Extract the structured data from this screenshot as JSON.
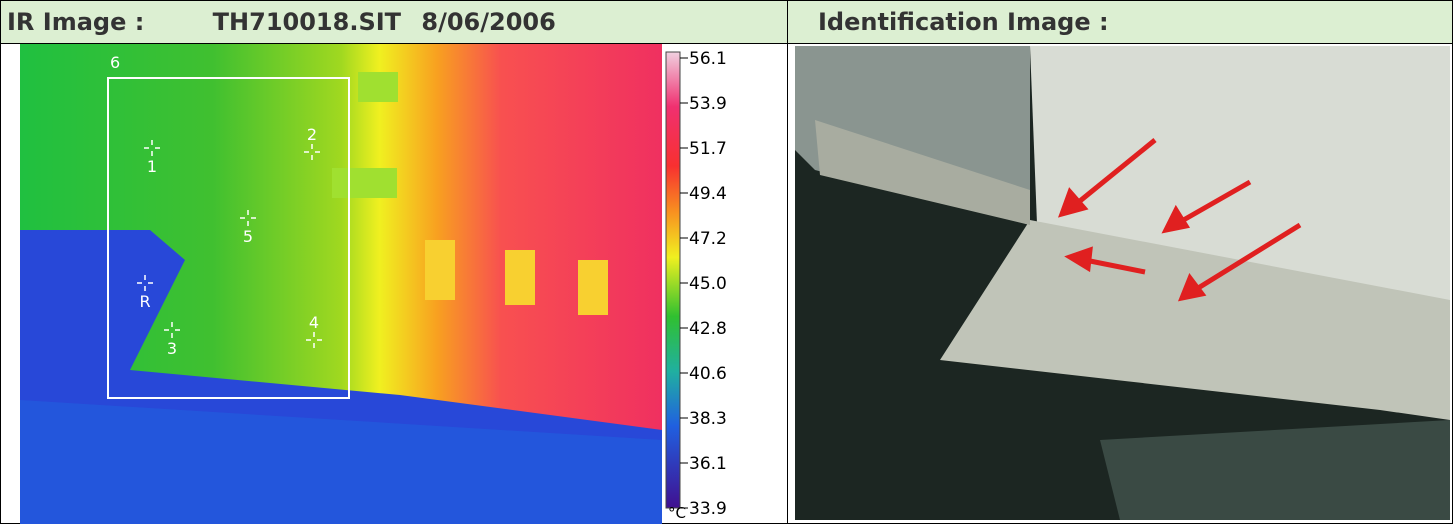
{
  "header": {
    "ir_label": "IR Image :",
    "file": "TH710018.SIT",
    "date": "8/06/2006",
    "id_label": "Identification Image :"
  },
  "ir_image": {
    "markers": [
      "1",
      "2",
      "5",
      "R",
      "3",
      "4"
    ],
    "area_label": "6",
    "scale": {
      "labels": [
        "56.1",
        "53.9",
        "51.7",
        "49.4",
        "47.2",
        "45.0",
        "42.8",
        "40.6",
        "38.3",
        "36.1",
        "33.9"
      ],
      "unit": "°C"
    }
  }
}
